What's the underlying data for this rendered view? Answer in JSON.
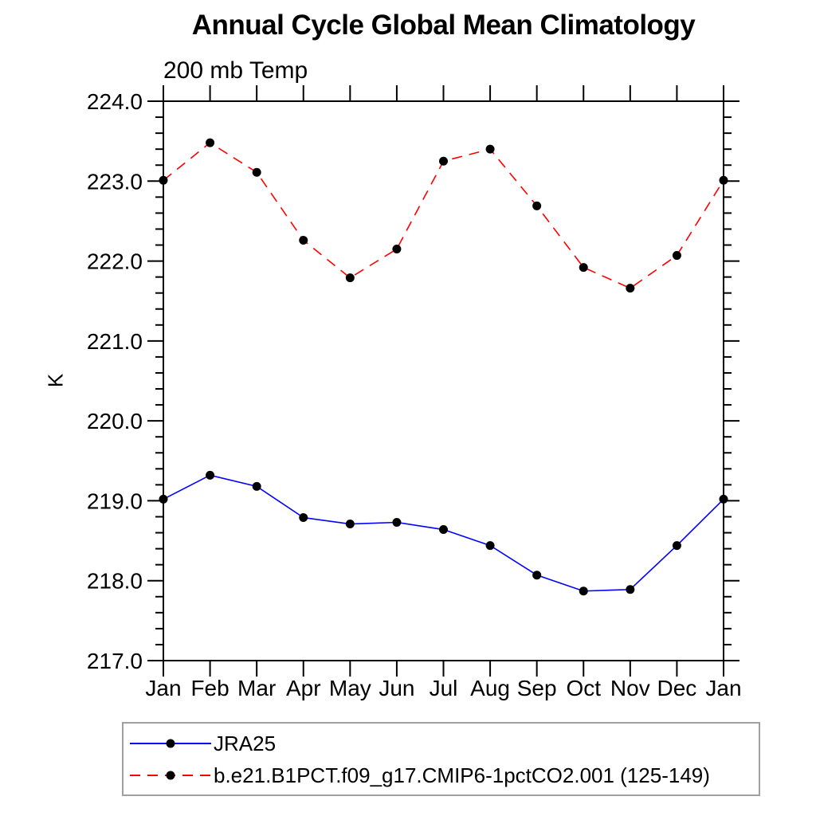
{
  "page": {
    "background": "#ffffff"
  },
  "chart_data": {
    "type": "line",
    "title": "Annual Cycle Global Mean Climatology",
    "subtitle": "200 mb Temp",
    "xlabel": "",
    "ylabel": "K",
    "x_categories": [
      "Jan",
      "Feb",
      "Mar",
      "Apr",
      "May",
      "Jun",
      "Jul",
      "Aug",
      "Sep",
      "Oct",
      "Nov",
      "Dec",
      "Jan"
    ],
    "ylim": [
      217.0,
      224.0
    ],
    "y_major_step": 1.0,
    "y_minor_step": 0.2,
    "y_tick_labels": [
      "217.0",
      "218.0",
      "219.0",
      "220.0",
      "221.0",
      "222.0",
      "223.0",
      "224.0"
    ],
    "grid": false,
    "legend_position": "bottom-left-box",
    "axis_color": "#000000",
    "series": [
      {
        "name": "JRA25",
        "color": "#0000ff",
        "line_style": "solid",
        "marker": "filled-circle",
        "marker_color": "#000000",
        "values": [
          219.02,
          219.32,
          219.18,
          218.79,
          218.71,
          218.73,
          218.64,
          218.44,
          218.07,
          217.87,
          217.89,
          218.44,
          219.02
        ]
      },
      {
        "name": "b.e21.B1PCT.f09_g17.CMIP6-1pctCO2.001 (125-149)",
        "color": "#ff0000",
        "line_style": "dashed",
        "marker": "filled-circle",
        "marker_color": "#000000",
        "values": [
          223.01,
          223.48,
          223.11,
          222.26,
          221.79,
          222.15,
          223.25,
          223.4,
          222.69,
          221.92,
          221.66,
          222.07,
          223.01
        ]
      }
    ]
  }
}
